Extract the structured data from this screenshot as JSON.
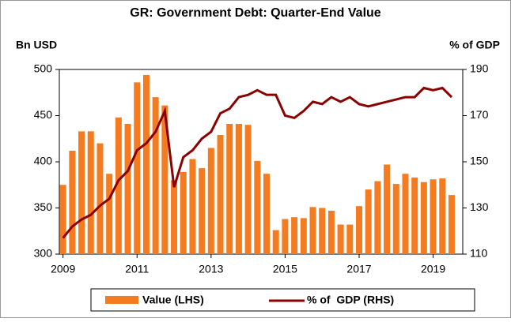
{
  "chart_data": {
    "type": "bar_line",
    "title": "GR: Government Debt: Quarter-End Value",
    "ylabel": "Bn USD",
    "y2label": "% of GDP",
    "x": [
      2009,
      2009.25,
      2009.5,
      2009.75,
      2010,
      2010.25,
      2010.5,
      2010.75,
      2011,
      2011.25,
      2011.5,
      2011.75,
      2012,
      2012.25,
      2012.5,
      2012.75,
      2013,
      2013.25,
      2013.5,
      2013.75,
      2014,
      2014.25,
      2014.5,
      2014.75,
      2015,
      2015.25,
      2015.5,
      2015.75,
      2016,
      2016.25,
      2016.5,
      2016.75,
      2017,
      2017.25,
      2017.5,
      2017.75,
      2018,
      2018.25,
      2018.5,
      2018.75,
      2019,
      2019.25,
      2019.5
    ],
    "series": [
      {
        "name": "Value (LHS)",
        "color": "#f47b20",
        "kind": "bar",
        "values": [
          375,
          412,
          433,
          433,
          420,
          387,
          448,
          441,
          486,
          494,
          470,
          461,
          380,
          389,
          403,
          393,
          415,
          429,
          441,
          441,
          440,
          401,
          387,
          326,
          338,
          340,
          339,
          351,
          350,
          347,
          332,
          332,
          352,
          370,
          379,
          397,
          376,
          387,
          383,
          378,
          381,
          382,
          364
        ]
      },
      {
        "name": "% of  GDP (RHS)",
        "color": "#8b0000",
        "kind": "line",
        "axis": "y2",
        "values": [
          117,
          122,
          125,
          127,
          131,
          134,
          142,
          146,
          155,
          158,
          163,
          172,
          139,
          152,
          155,
          160,
          163,
          171,
          173,
          178,
          179,
          181,
          179,
          179,
          170,
          169,
          172,
          176,
          175,
          178,
          176,
          178,
          175,
          174,
          175,
          176,
          177,
          178,
          178,
          182,
          181,
          182,
          178
        ]
      }
    ],
    "xlim": [
      2008.9,
      2019.8
    ],
    "xticks": [
      2009,
      2011,
      2013,
      2015,
      2017,
      2019
    ],
    "ylim": [
      300,
      500
    ],
    "yticks": [
      300,
      350,
      400,
      450,
      500
    ],
    "y2lim": [
      110,
      190
    ],
    "y2ticks": [
      110,
      130,
      150,
      170,
      190
    ]
  }
}
